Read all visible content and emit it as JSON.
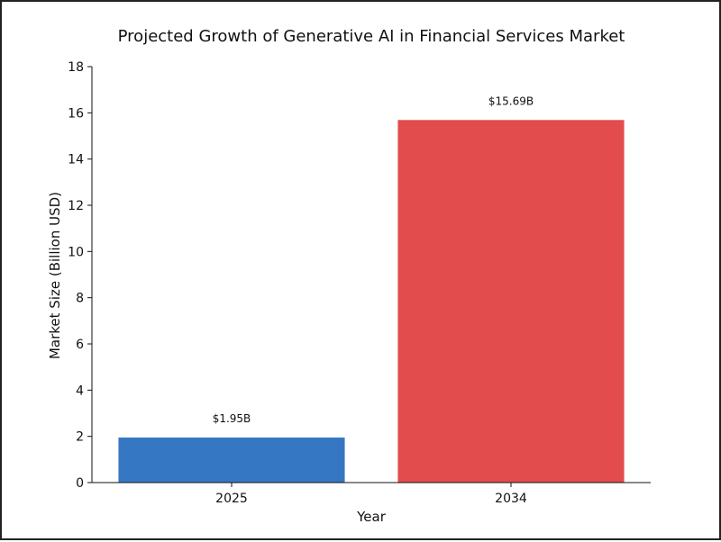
{
  "chart_data": {
    "type": "bar",
    "title": "Projected Growth of Generative AI in Financial Services Market",
    "xlabel": "Year",
    "ylabel": "Market Size (Billion USD)",
    "categories": [
      "2025",
      "2034"
    ],
    "values": [
      1.95,
      15.69
    ],
    "data_labels": [
      "$1.95B",
      "$15.69B"
    ],
    "colors": [
      "#3677c4",
      "#e24c4c"
    ],
    "ylim": [
      0,
      18
    ],
    "yticks": [
      0,
      2,
      4,
      6,
      8,
      10,
      12,
      14,
      16,
      18
    ],
    "grid": false,
    "legend": "none"
  }
}
